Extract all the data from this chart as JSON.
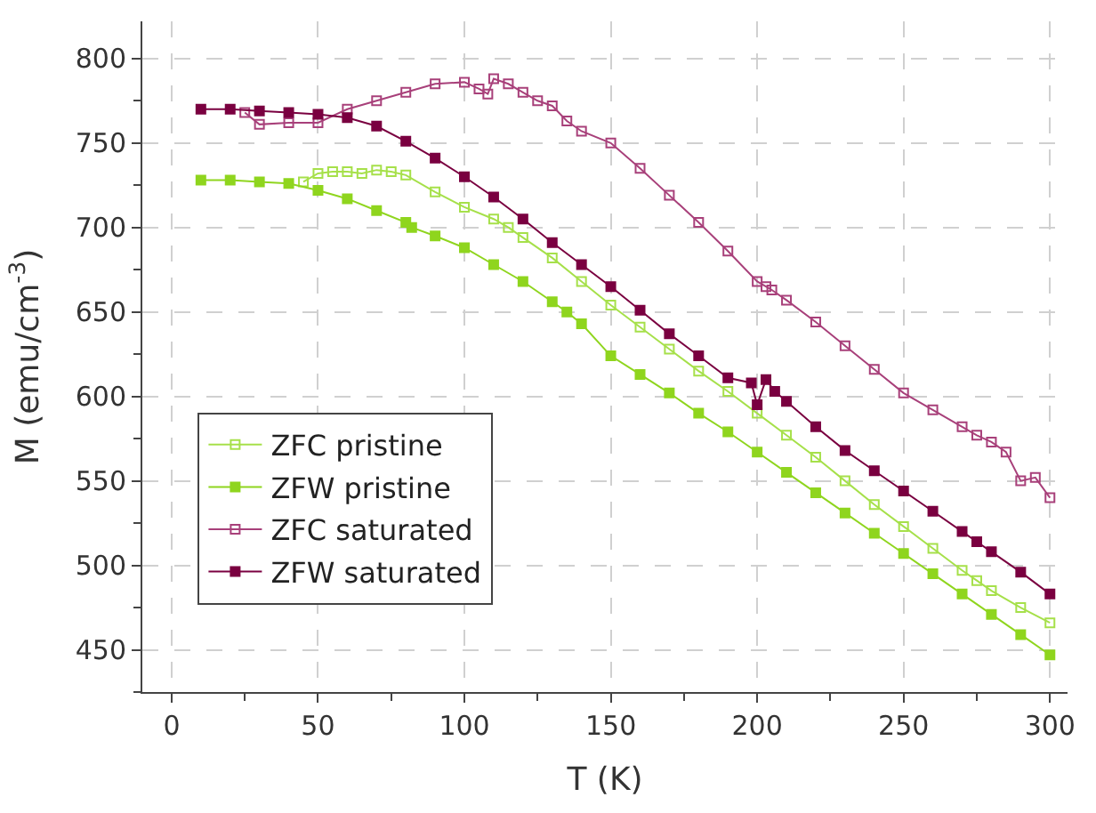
{
  "chart_data": {
    "type": "line",
    "xlabel": "T (K)",
    "ylabel": "M (emu/cm$^{-3}$)",
    "xlim": [
      -10,
      306
    ],
    "ylim": [
      425,
      822
    ],
    "xticks": [
      0,
      50,
      100,
      150,
      200,
      250,
      300
    ],
    "yticks": [
      450,
      500,
      550,
      600,
      650,
      700,
      750,
      800
    ],
    "grid": true,
    "legend": "bottom left",
    "line_style": "solid",
    "series": [
      {
        "name": "ZFC pristine",
        "color": "#a6e04a",
        "marker": "square-open",
        "x": [
          45,
          50,
          55,
          60,
          65,
          70,
          75,
          80,
          90,
          100,
          110,
          115,
          120,
          130,
          140,
          150,
          160,
          170,
          180,
          190,
          200,
          210,
          220,
          230,
          240,
          250,
          260,
          270,
          275,
          280,
          290,
          300
        ],
        "values": [
          727,
          732,
          733,
          733,
          732,
          734,
          733,
          731,
          721,
          712,
          705,
          700,
          694,
          682,
          668,
          654,
          641,
          628,
          615,
          603,
          590,
          577,
          564,
          550,
          536,
          523,
          510,
          497,
          491,
          485,
          475,
          466
        ]
      },
      {
        "name": "ZFW pristine",
        "color": "#8fd51e",
        "marker": "square",
        "x": [
          10,
          20,
          30,
          40,
          50,
          60,
          70,
          80,
          82,
          90,
          100,
          110,
          120,
          130,
          135,
          140,
          150,
          160,
          170,
          180,
          190,
          200,
          210,
          220,
          230,
          240,
          250,
          260,
          270,
          280,
          290,
          300
        ],
        "values": [
          728,
          728,
          727,
          726,
          722,
          717,
          710,
          703,
          700,
          695,
          688,
          678,
          668,
          656,
          650,
          643,
          624,
          613,
          602,
          590,
          579,
          567,
          555,
          543,
          531,
          519,
          507,
          495,
          483,
          471,
          459,
          447
        ]
      },
      {
        "name": "ZFC saturated",
        "color": "#a8407a",
        "marker": "square-open",
        "x": [
          25,
          30,
          40,
          50,
          60,
          70,
          80,
          90,
          100,
          105,
          108,
          110,
          115,
          120,
          125,
          130,
          135,
          140,
          150,
          160,
          170,
          180,
          190,
          200,
          203,
          205,
          210,
          220,
          230,
          240,
          250,
          260,
          270,
          275,
          280,
          285,
          290,
          295,
          300
        ],
        "values": [
          768,
          761,
          762,
          762,
          770,
          775,
          780,
          785,
          786,
          782,
          779,
          788,
          785,
          780,
          775,
          772,
          763,
          757,
          750,
          735,
          719,
          703,
          686,
          668,
          665,
          663,
          657,
          644,
          630,
          616,
          602,
          592,
          582,
          577,
          573,
          567,
          550,
          552,
          540
        ]
      },
      {
        "name": "ZFW saturated",
        "color": "#7a0040",
        "marker": "square",
        "x": [
          10,
          20,
          30,
          40,
          50,
          60,
          70,
          80,
          90,
          100,
          110,
          120,
          130,
          140,
          150,
          160,
          170,
          180,
          190,
          198,
          200,
          203,
          206,
          210,
          220,
          230,
          240,
          250,
          260,
          270,
          275,
          280,
          290,
          300
        ],
        "values": [
          770,
          770,
          769,
          768,
          767,
          765,
          760,
          751,
          741,
          730,
          718,
          705,
          691,
          678,
          665,
          651,
          637,
          624,
          611,
          608,
          595,
          610,
          603,
          597,
          582,
          568,
          556,
          544,
          532,
          520,
          514,
          508,
          496,
          483
        ]
      }
    ]
  }
}
